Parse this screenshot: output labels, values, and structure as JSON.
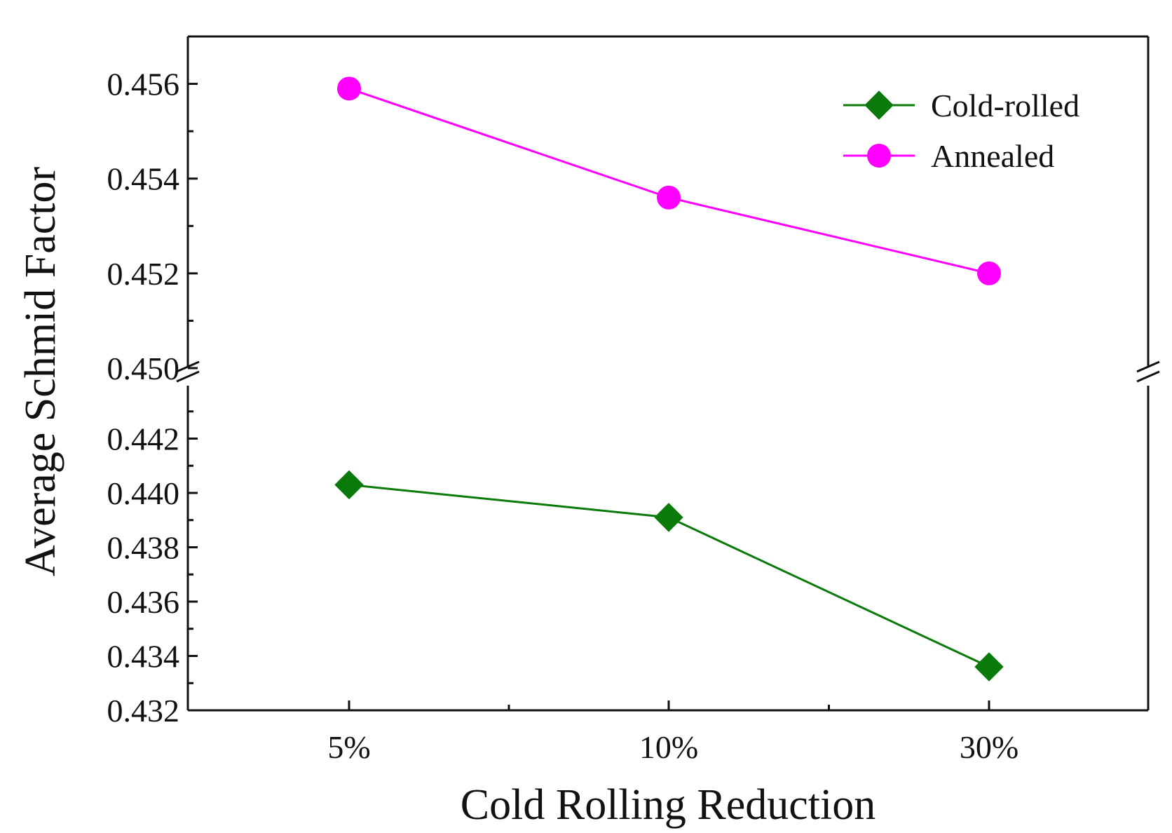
{
  "chart_data": {
    "type": "line",
    "xlabel": "Cold Rolling Reduction",
    "ylabel": "Average Schmid Factor",
    "categories": [
      "5%",
      "10%",
      "30%"
    ],
    "y_axis": {
      "broken": true,
      "lower_range": [
        0.432,
        0.444
      ],
      "upper_range": [
        0.45,
        0.457
      ],
      "lower_ticks": [
        "0.432",
        "0.434",
        "0.436",
        "0.438",
        "0.440",
        "0.442"
      ],
      "upper_ticks": [
        "0.450",
        "0.452",
        "0.454",
        "0.456"
      ]
    },
    "series": [
      {
        "name": "Cold-rolled",
        "marker": "diamond",
        "color": "#0a7a0a",
        "values": [
          0.4403,
          0.4391,
          0.4336
        ]
      },
      {
        "name": "Annealed",
        "marker": "circle",
        "color": "#ff00ff",
        "values": [
          0.4559,
          0.4536,
          0.452
        ]
      }
    ],
    "legend_position": "top-right",
    "grid": false
  }
}
